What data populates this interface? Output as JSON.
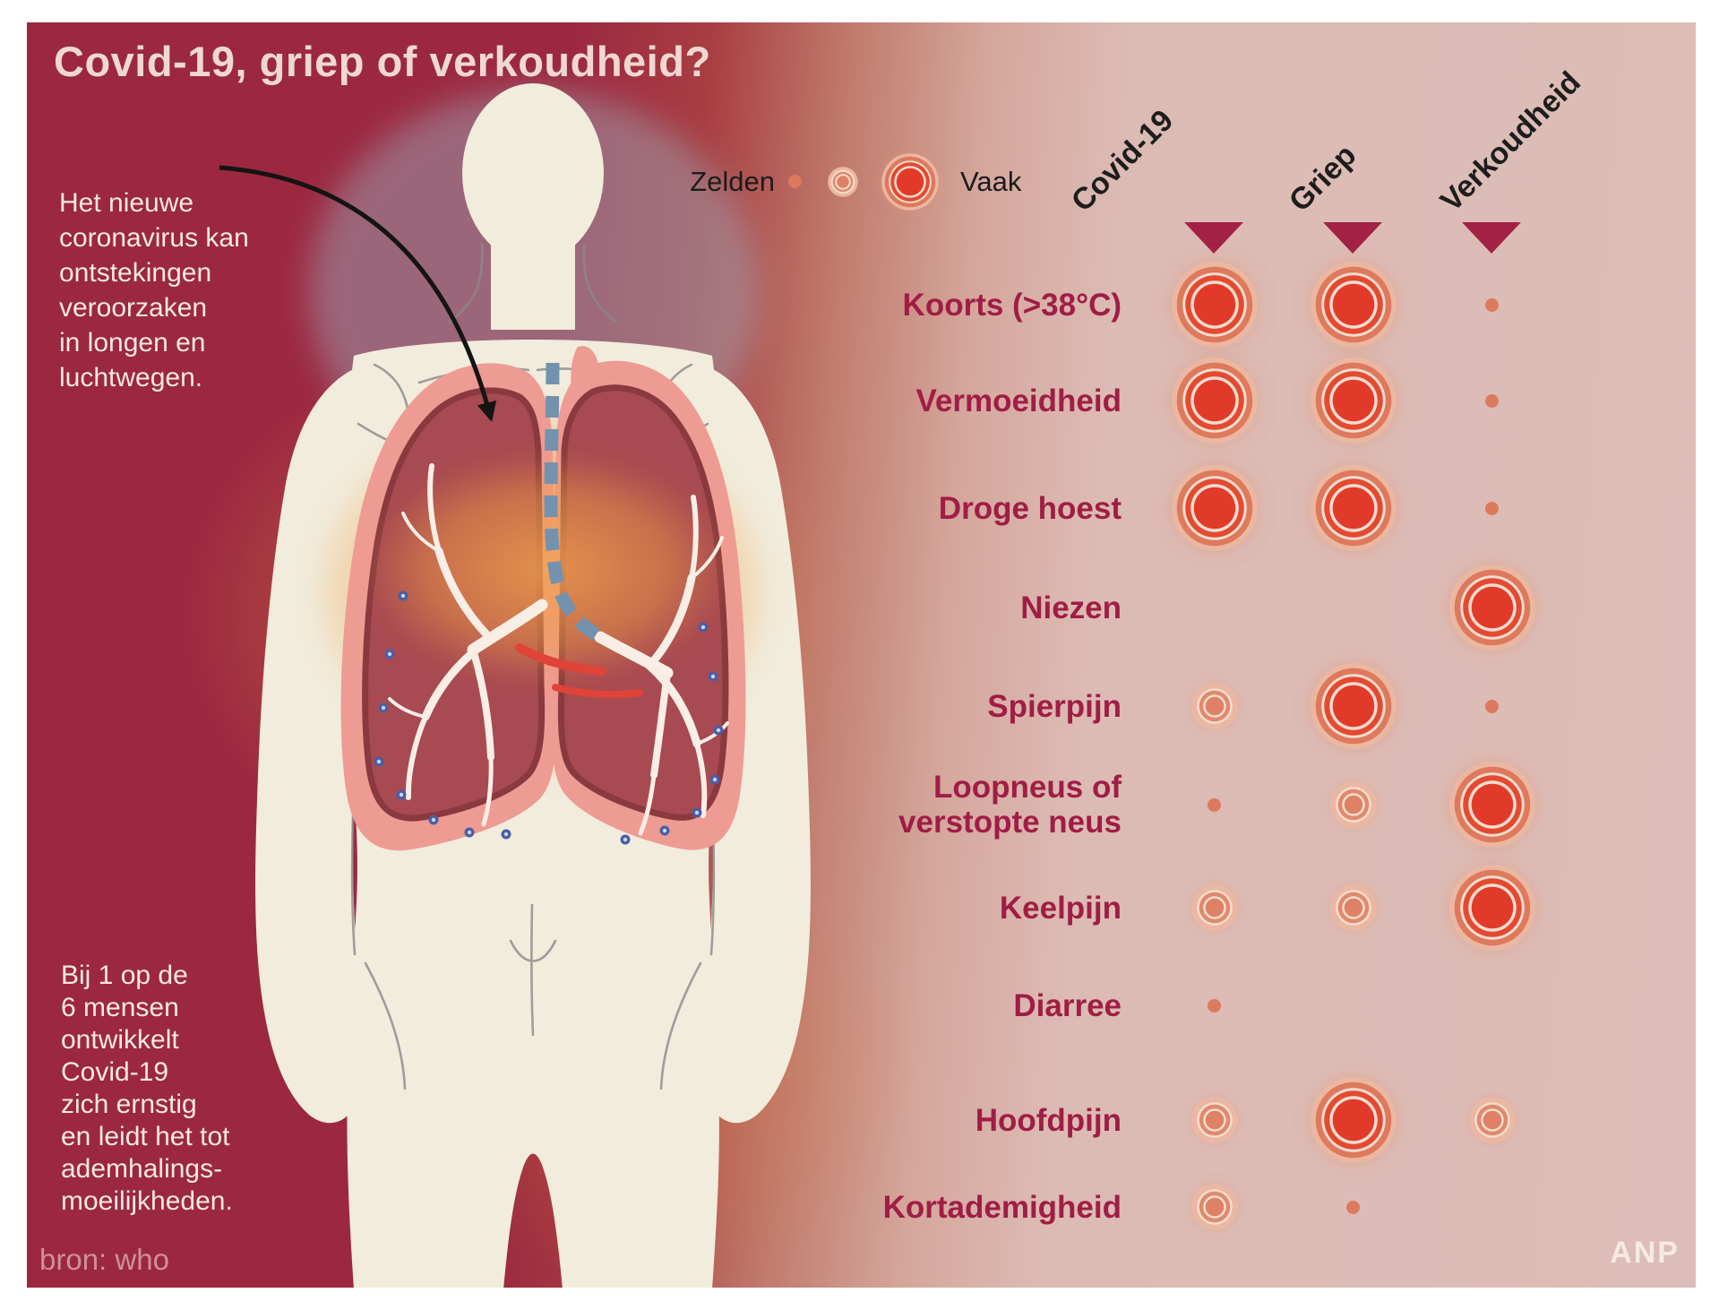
{
  "title": "Covid-19, griep of verkoudheid?",
  "legend": {
    "rare_label": "Zelden",
    "often_label": "Vaak"
  },
  "annotations": {
    "lungs_note": "Het nieuwe\ncoronavirus kan\nontstekingen\nveroorzaken\nin longen en\nluchtwegen.",
    "severity_note": "Bij 1 op de\n6 mensen\nontwikkelt\nCovid-19\nzich ernstig\nen leidt het tot\nademhalings-\nmoeilijkheden.",
    "source": "bron: who",
    "agency": "ANP"
  },
  "colors": {
    "background_dark_red": "#9c2840",
    "background_pink": "#ddbdb7",
    "label_crimson": "#a01d45",
    "triangle_crimson": "#a32145",
    "circle_red_core": "#e23a29",
    "circle_salmon": "#dc7a5e",
    "circle_pale_ring": "#ecb7a0",
    "title_text": "#efd8d2",
    "note_text": "#f8e8e1"
  },
  "chart_data": {
    "type": "table",
    "title": "Covid-19, griep of verkoudheid?",
    "legend": {
      "small": "Zelden",
      "large": "Vaak"
    },
    "columns": [
      "Covid-19",
      "Griep",
      "Verkoudheid"
    ],
    "rows": [
      {
        "symptom": "Koorts (>38°C)",
        "values": [
          "large",
          "large",
          "small"
        ]
      },
      {
        "symptom": "Vermoeidheid",
        "values": [
          "large",
          "large",
          "small"
        ]
      },
      {
        "symptom": "Droge hoest",
        "values": [
          "large",
          "large",
          "small"
        ]
      },
      {
        "symptom": "Niezen",
        "values": [
          "none",
          "none",
          "large"
        ]
      },
      {
        "symptom": "Spierpijn",
        "values": [
          "medium",
          "large",
          "small"
        ]
      },
      {
        "symptom": "Loopneus of verstopte neus",
        "values": [
          "small",
          "medium",
          "large"
        ]
      },
      {
        "symptom": "Keelpijn",
        "values": [
          "medium",
          "medium",
          "large"
        ]
      },
      {
        "symptom": "Diarree",
        "values": [
          "small",
          "none",
          "none"
        ]
      },
      {
        "symptom": "Hoofdpijn",
        "values": [
          "medium",
          "large",
          "medium"
        ]
      },
      {
        "symptom": "Kortademigheid",
        "values": [
          "medium",
          "small",
          "none"
        ]
      }
    ]
  }
}
